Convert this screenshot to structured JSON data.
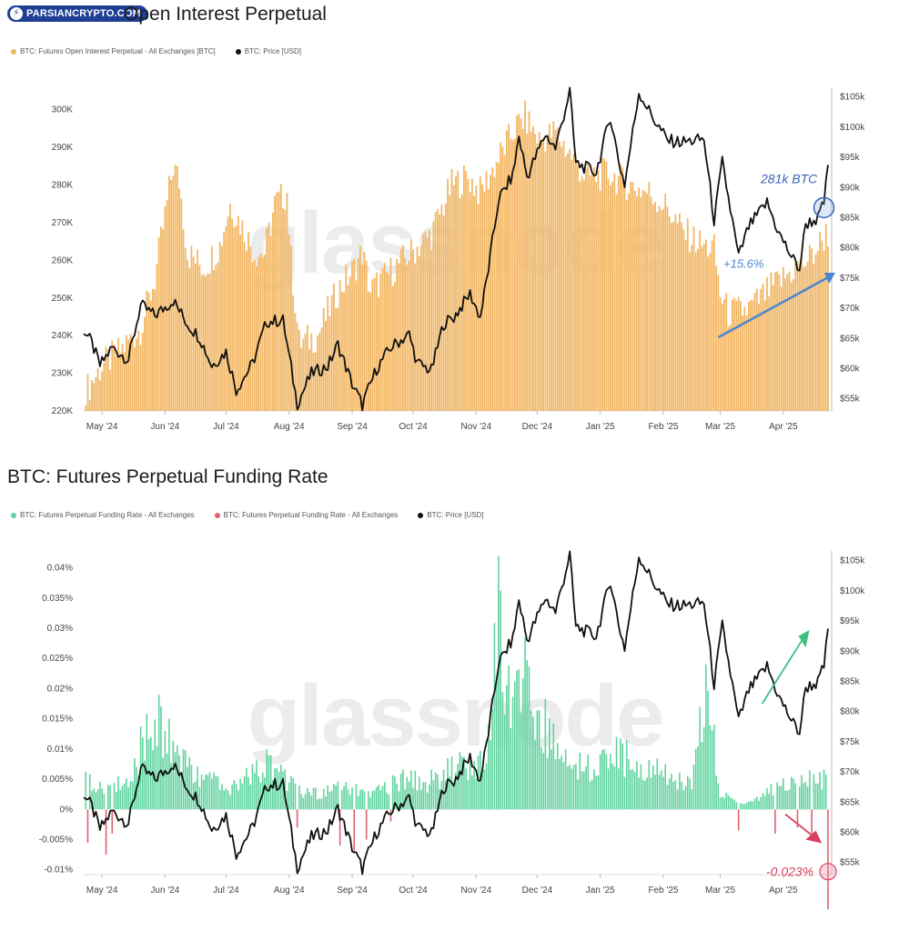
{
  "brand": {
    "logo_text": "PARSIANCRYPTO.COM"
  },
  "colors": {
    "oi": "#f2b765",
    "funding_pos": "#5fd39e",
    "funding_neg": "#e0606f",
    "price": "#111111",
    "annot_blue": "#3b62b8",
    "annot_arrow": "#4a86d0",
    "annot_green": "#3fbf7f",
    "annot_red": "#d94060",
    "watermark": "#ececec"
  },
  "watermark": "glassnode",
  "charts": [
    {
      "id": "oi",
      "title": "Open Interest Perpetual",
      "legend": [
        "BTC: Futures Open Interest Perpetual - All Exchanges [BTC]",
        "BTC: Price [USD]"
      ],
      "left_ticks": [
        "300K",
        "290K",
        "280K",
        "270K",
        "260K",
        "250K",
        "240K",
        "230K",
        "220K"
      ],
      "right_ticks": [
        "$105k",
        "$100k",
        "$95k",
        "$90k",
        "$85k",
        "$80k",
        "$75k",
        "$70k",
        "$65k",
        "$60k",
        "$55k"
      ],
      "x_ticks": [
        "May '24",
        "Jun '24",
        "Jul '24",
        "Aug '24",
        "Sep '24",
        "Oct '24",
        "Nov '24",
        "Dec '24",
        "Jan '25",
        "Feb '25",
        "Mar '25",
        "Apr '25"
      ],
      "annotations": [
        "281k BTC",
        "+15.6%"
      ]
    },
    {
      "id": "funding",
      "title": "BTC: Futures Perpetual Funding Rate",
      "legend": [
        "BTC: Futures Perpetual Funding Rate - All Exchanges",
        "BTC: Futures Perpetual Funding Rate - All Exchanges",
        "BTC: Price [USD]"
      ],
      "left_ticks": [
        "0.04%",
        "0.035%",
        "0.03%",
        "0.025%",
        "0.02%",
        "0.015%",
        "0.01%",
        "0.005%",
        "0%",
        "-0.005%",
        "-0.01%"
      ],
      "right_ticks": [
        "$105k",
        "$100k",
        "$95k",
        "$90k",
        "$85k",
        "$80k",
        "$75k",
        "$70k",
        "$65k",
        "$60k",
        "$55k"
      ],
      "x_ticks": [
        "May '24",
        "Jun '24",
        "Jul '24",
        "Aug '24",
        "Sep '24",
        "Oct '24",
        "Nov '24",
        "Dec '24",
        "Jan '25",
        "Feb '25",
        "Mar '25",
        "Apr '25"
      ],
      "annotations": [
        "-0.023%"
      ]
    }
  ],
  "chart_data": [
    {
      "type": "bar",
      "title": "Open Interest Perpetual",
      "x_range": [
        "2024-04-22",
        "2025-04-23"
      ],
      "left_ylim": [
        220000,
        305000
      ],
      "right_ylim": [
        53000,
        106000
      ],
      "series": [
        {
          "name": "BTC: Futures Open Interest Perpetual - All Exchanges [BTC]",
          "axis": "left",
          "points": [
            [
              "2024-04-24",
              226000
            ],
            [
              "2024-05-01",
              232000
            ],
            [
              "2024-05-10",
              236000
            ],
            [
              "2024-05-20",
              242000
            ],
            [
              "2024-05-27",
              255000
            ],
            [
              "2024-06-01",
              272000
            ],
            [
              "2024-06-05",
              285000
            ],
            [
              "2024-06-08",
              281000
            ],
            [
              "2024-06-12",
              262000
            ],
            [
              "2024-06-20",
              258000
            ],
            [
              "2024-06-28",
              264000
            ],
            [
              "2024-07-03",
              275000
            ],
            [
              "2024-07-08",
              270000
            ],
            [
              "2024-07-15",
              262000
            ],
            [
              "2024-07-20",
              262000
            ],
            [
              "2024-07-25",
              275000
            ],
            [
              "2024-07-31",
              278000
            ],
            [
              "2024-08-02",
              260000
            ],
            [
              "2024-08-06",
              238000
            ],
            [
              "2024-08-15",
              240000
            ],
            [
              "2024-08-25",
              252000
            ],
            [
              "2024-09-01",
              257000
            ],
            [
              "2024-09-06",
              262000
            ],
            [
              "2024-09-10",
              252000
            ],
            [
              "2024-09-20",
              257000
            ],
            [
              "2024-09-30",
              262000
            ],
            [
              "2024-10-10",
              267000
            ],
            [
              "2024-10-20",
              280000
            ],
            [
              "2024-10-28",
              282000
            ],
            [
              "2024-11-03",
              278000
            ],
            [
              "2024-11-11",
              286000
            ],
            [
              "2024-11-20",
              295000
            ],
            [
              "2024-11-25",
              298000
            ],
            [
              "2024-12-02",
              292000
            ],
            [
              "2024-12-10",
              294000
            ],
            [
              "2024-12-20",
              286000
            ],
            [
              "2024-12-25",
              282000
            ],
            [
              "2025-01-05",
              283000
            ],
            [
              "2025-01-15",
              280000
            ],
            [
              "2025-01-25",
              278000
            ],
            [
              "2025-02-03",
              274000
            ],
            [
              "2025-02-10",
              268000
            ],
            [
              "2025-02-20",
              264000
            ],
            [
              "2025-02-26",
              263000
            ],
            [
              "2025-03-01",
              251000
            ],
            [
              "2025-03-05",
              246000
            ],
            [
              "2025-03-15",
              247000
            ],
            [
              "2025-03-25",
              252000
            ],
            [
              "2025-04-05",
              257000
            ],
            [
              "2025-04-15",
              261000
            ],
            [
              "2025-04-22",
              267000
            ]
          ]
        },
        {
          "name": "BTC: Price [USD]",
          "axis": "right",
          "type": "line",
          "points": [
            [
              "2024-04-22",
              66500
            ],
            [
              "2024-04-26",
              64200
            ],
            [
              "2024-04-30",
              60500
            ],
            [
              "2024-05-06",
              63500
            ],
            [
              "2024-05-14",
              61500
            ],
            [
              "2024-05-20",
              70500
            ],
            [
              "2024-05-27",
              68800
            ],
            [
              "2024-06-05",
              71300
            ],
            [
              "2024-06-12",
              67400
            ],
            [
              "2024-06-18",
              65200
            ],
            [
              "2024-06-24",
              60500
            ],
            [
              "2024-07-01",
              62800
            ],
            [
              "2024-07-06",
              56500
            ],
            [
              "2024-07-14",
              60800
            ],
            [
              "2024-07-21",
              67800
            ],
            [
              "2024-07-29",
              68000
            ],
            [
              "2024-08-05",
              54200
            ],
            [
              "2024-08-12",
              59200
            ],
            [
              "2024-08-20",
              60400
            ],
            [
              "2024-08-25",
              64000
            ],
            [
              "2024-09-01",
              57500
            ],
            [
              "2024-09-06",
              54000
            ],
            [
              "2024-09-13",
              60000
            ],
            [
              "2024-09-20",
              63500
            ],
            [
              "2024-09-29",
              65700
            ],
            [
              "2024-10-03",
              60900
            ],
            [
              "2024-10-10",
              59700
            ],
            [
              "2024-10-16",
              67500
            ],
            [
              "2024-10-21",
              68500
            ],
            [
              "2024-10-29",
              72400
            ],
            [
              "2024-11-03",
              68500
            ],
            [
              "2024-11-07",
              76500
            ],
            [
              "2024-11-12",
              88000
            ],
            [
              "2024-11-19",
              92000
            ],
            [
              "2024-11-22",
              98500
            ],
            [
              "2024-11-26",
              91800
            ],
            [
              "2024-12-05",
              98800
            ],
            [
              "2024-12-10",
              96500
            ],
            [
              "2024-12-17",
              106000
            ],
            [
              "2024-12-20",
              94000
            ],
            [
              "2024-12-30",
              92500
            ],
            [
              "2025-01-06",
              101800
            ],
            [
              "2025-01-10",
              94500
            ],
            [
              "2025-01-13",
              90500
            ],
            [
              "2025-01-20",
              105800
            ],
            [
              "2025-01-27",
              101500
            ],
            [
              "2025-02-03",
              97800
            ],
            [
              "2025-02-10",
              97500
            ],
            [
              "2025-02-21",
              98000
            ],
            [
              "2025-02-26",
              84500
            ],
            [
              "2025-03-02",
              94200
            ],
            [
              "2025-03-10",
              78500
            ],
            [
              "2025-03-15",
              83500
            ],
            [
              "2025-03-24",
              87500
            ],
            [
              "2025-03-30",
              82300
            ],
            [
              "2025-04-06",
              78000
            ],
            [
              "2025-04-09",
              76500
            ],
            [
              "2025-04-12",
              84000
            ],
            [
              "2025-04-18",
              84800
            ],
            [
              "2025-04-21",
              87500
            ],
            [
              "2025-04-23",
              93500
            ]
          ]
        }
      ],
      "annotations": [
        "281k BTC",
        "+15.6%"
      ]
    },
    {
      "type": "bar",
      "title": "BTC: Futures Perpetual Funding Rate",
      "x_range": [
        "2024-04-22",
        "2025-04-23"
      ],
      "left_ylim": [
        -0.0108,
        0.0422
      ],
      "right_ylim": [
        53000,
        106000
      ],
      "series": [
        {
          "name": "BTC: Futures Perpetual Funding Rate - All Exchanges",
          "axis": "left",
          "sign": "positive",
          "points": [
            [
              "2024-04-25",
              0.005
            ],
            [
              "2024-05-05",
              0.004
            ],
            [
              "2024-05-15",
              0.006
            ],
            [
              "2024-05-20",
              0.011
            ],
            [
              "2024-05-28",
              0.016
            ],
            [
              "2024-06-05",
              0.012
            ],
            [
              "2024-06-15",
              0.007
            ],
            [
              "2024-06-25",
              0.005
            ],
            [
              "2024-07-05",
              0.004
            ],
            [
              "2024-07-15",
              0.007
            ],
            [
              "2024-07-22",
              0.009
            ],
            [
              "2024-07-29",
              0.006
            ],
            [
              "2024-08-08",
              0.003
            ],
            [
              "2024-08-18",
              0.003
            ],
            [
              "2024-08-28",
              0.004
            ],
            [
              "2024-09-08",
              0.003
            ],
            [
              "2024-09-18",
              0.004
            ],
            [
              "2024-09-28",
              0.006
            ],
            [
              "2024-10-08",
              0.005
            ],
            [
              "2024-10-18",
              0.007
            ],
            [
              "2024-10-28",
              0.008
            ],
            [
              "2024-11-06",
              0.008
            ],
            [
              "2024-11-12",
              0.042
            ],
            [
              "2024-11-15",
              0.018
            ],
            [
              "2024-11-22",
              0.024
            ],
            [
              "2024-11-28",
              0.022
            ],
            [
              "2024-12-05",
              0.016
            ],
            [
              "2024-12-12",
              0.012
            ],
            [
              "2024-12-20",
              0.009
            ],
            [
              "2024-12-30",
              0.007
            ],
            [
              "2025-01-08",
              0.01
            ],
            [
              "2025-01-18",
              0.009
            ],
            [
              "2025-01-28",
              0.008
            ],
            [
              "2025-02-07",
              0.006
            ],
            [
              "2025-02-15",
              0.004
            ],
            [
              "2025-02-22",
              0.024
            ],
            [
              "2025-03-01",
              0.003
            ],
            [
              "2025-03-10",
              0.001
            ],
            [
              "2025-03-20",
              0.002
            ],
            [
              "2025-04-01",
              0.005
            ],
            [
              "2025-04-10",
              0.006
            ],
            [
              "2025-04-20",
              0.006
            ]
          ]
        },
        {
          "name": "BTC: Futures Perpetual Funding Rate - All Exchanges",
          "axis": "left",
          "sign": "negative",
          "points": [
            [
              "2024-04-24",
              -0.0055
            ],
            [
              "2024-05-03",
              -0.0075
            ],
            [
              "2024-05-06",
              -0.004
            ],
            [
              "2024-08-05",
              -0.003
            ],
            [
              "2024-08-26",
              -0.006
            ],
            [
              "2024-09-02",
              -0.007
            ],
            [
              "2024-09-08",
              -0.005
            ],
            [
              "2024-09-20",
              -0.002
            ],
            [
              "2025-03-10",
              -0.0035
            ],
            [
              "2025-03-28",
              -0.004
            ],
            [
              "2025-04-08",
              -0.003
            ],
            [
              "2025-04-15",
              -0.004
            ],
            [
              "2025-04-23",
              -0.023
            ]
          ]
        },
        {
          "name": "BTC: Price [USD]",
          "axis": "right",
          "type": "line",
          "points": "same as Open Interest chart price series"
        }
      ],
      "annotations": [
        "-0.023%"
      ]
    }
  ]
}
